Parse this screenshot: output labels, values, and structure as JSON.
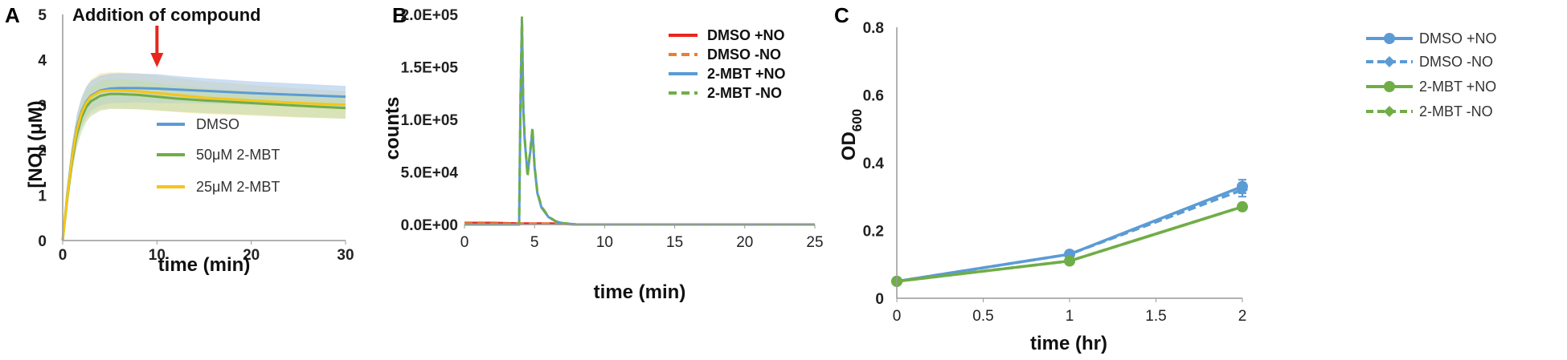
{
  "chart_data": [
    {
      "panel": "A",
      "type": "line",
      "xlabel": "time (min)",
      "ylabel": "[NO] (μM)",
      "xlim": [
        0,
        30
      ],
      "ylim": [
        0,
        5
      ],
      "xticks": [
        0,
        10,
        20,
        30
      ],
      "yticks": [
        0,
        1,
        2,
        3,
        4,
        5
      ],
      "annotation": "Addition of compound",
      "annotation_x": 10,
      "legend_position": "center-right",
      "series": [
        {
          "name": "DMSO",
          "color": "#5b9bd5",
          "band_color": "#a9c8ea",
          "x": [
            0,
            0.5,
            1,
            1.5,
            2,
            2.5,
            3,
            4,
            5,
            6,
            8,
            10,
            12,
            15,
            20,
            25,
            30
          ],
          "y": [
            0,
            1.05,
            1.9,
            2.5,
            2.85,
            3.07,
            3.2,
            3.32,
            3.36,
            3.37,
            3.37,
            3.36,
            3.34,
            3.31,
            3.26,
            3.22,
            3.18
          ],
          "sd": [
            0,
            0.15,
            0.25,
            0.3,
            0.32,
            0.33,
            0.33,
            0.33,
            0.33,
            0.33,
            0.32,
            0.32,
            0.3,
            0.28,
            0.26,
            0.25,
            0.24
          ]
        },
        {
          "name": "50μM 2-MBT",
          "color": "#70ad47",
          "band_color": "#c3dcae",
          "x": [
            0,
            0.5,
            1,
            1.5,
            2,
            2.5,
            3,
            4,
            5,
            6,
            8,
            10,
            12,
            15,
            20,
            25,
            30
          ],
          "y": [
            0,
            0.95,
            1.75,
            2.35,
            2.72,
            2.95,
            3.08,
            3.2,
            3.24,
            3.24,
            3.22,
            3.18,
            3.14,
            3.1,
            3.04,
            2.98,
            2.93
          ],
          "sd": [
            0,
            0.15,
            0.25,
            0.3,
            0.32,
            0.33,
            0.33,
            0.33,
            0.33,
            0.33,
            0.32,
            0.3,
            0.29,
            0.28,
            0.26,
            0.25,
            0.24
          ]
        },
        {
          "name": "25μM 2-MBT",
          "color": "#f5c518",
          "band_color": "#fbe3a0",
          "x": [
            0,
            0.5,
            1,
            1.5,
            2,
            2.5,
            3,
            4,
            5,
            6,
            8,
            10,
            12,
            15,
            20,
            25,
            30
          ],
          "y": [
            0,
            1.0,
            1.85,
            2.45,
            2.82,
            3.04,
            3.18,
            3.3,
            3.32,
            3.32,
            3.3,
            3.26,
            3.22,
            3.16,
            3.1,
            3.04,
            3.0
          ],
          "sd": [
            0,
            0.15,
            0.25,
            0.3,
            0.33,
            0.36,
            0.38,
            0.4,
            0.4,
            0.4,
            0.4,
            0.39,
            0.38,
            0.36,
            0.34,
            0.32,
            0.3
          ]
        }
      ]
    },
    {
      "panel": "B",
      "type": "line",
      "xlabel": "time (min)",
      "ylabel": "counts",
      "xlim": [
        0,
        25
      ],
      "ylim": [
        0,
        200000
      ],
      "xticks": [
        0,
        5,
        10,
        15,
        20,
        25
      ],
      "yticks": [
        0,
        50000,
        100000,
        150000,
        200000
      ],
      "ytick_labels": [
        "0.0E+00",
        "5.0E+04",
        "1.0E+05",
        "1.5E+05",
        "2.0E+05"
      ],
      "legend_position": "top-right",
      "series": [
        {
          "name": "DMSO +NO",
          "color": "#e8261c",
          "dash": "solid",
          "x": [
            0,
            1,
            2,
            3,
            4,
            5,
            6,
            7,
            8,
            25
          ],
          "y": [
            1500,
            1500,
            1500,
            1200,
            1000,
            1000,
            1000,
            800,
            0,
            0
          ]
        },
        {
          "name": "DMSO -NO",
          "color": "#ed7d31",
          "dash": "dashed",
          "x": [
            0,
            1,
            2,
            3,
            4,
            5,
            6,
            7,
            8,
            25
          ],
          "y": [
            1000,
            1000,
            1000,
            800,
            800,
            800,
            800,
            500,
            0,
            0
          ]
        },
        {
          "name": "2-MBT +NO",
          "color": "#5b9bd5",
          "dash": "solid",
          "x": [
            0,
            3.9,
            4.0,
            4.1,
            4.2,
            4.3,
            4.5,
            4.7,
            4.85,
            5.0,
            5.2,
            5.5,
            6.0,
            6.5,
            7.0,
            8,
            25
          ],
          "y": [
            0,
            0,
            120000,
            195000,
            110000,
            80000,
            48000,
            70000,
            90000,
            55000,
            30000,
            16000,
            7000,
            3000,
            1200,
            0,
            0
          ]
        },
        {
          "name": "2-MBT -NO",
          "color": "#70ad47",
          "dash": "dashed",
          "x": [
            0,
            3.9,
            4.0,
            4.1,
            4.2,
            4.3,
            4.5,
            4.7,
            4.85,
            5.0,
            5.2,
            5.5,
            6.0,
            6.5,
            7.0,
            8,
            25
          ],
          "y": [
            0,
            0,
            125000,
            198000,
            112000,
            82000,
            46000,
            72000,
            92000,
            56000,
            31000,
            17000,
            7500,
            3200,
            1300,
            0,
            0
          ]
        }
      ]
    },
    {
      "panel": "C",
      "type": "line",
      "xlabel": "time (hr)",
      "ylabel_main": "OD",
      "ylabel_sub": "600",
      "xlim": [
        0,
        2
      ],
      "ylim": [
        0,
        0.8
      ],
      "xticks": [
        0,
        0.5,
        1,
        1.5,
        2
      ],
      "yticks": [
        0,
        0.2,
        0.4,
        0.6,
        0.8
      ],
      "legend_position": "top-right",
      "series": [
        {
          "name": "DMSO +NO",
          "color": "#5b9bd5",
          "dash": "solid",
          "x": [
            0,
            1,
            2
          ],
          "y": [
            0.05,
            0.13,
            0.33
          ],
          "err": [
            0,
            0.01,
            0.02
          ]
        },
        {
          "name": "DMSO -NO",
          "color": "#5b9bd5",
          "dash": "dashed",
          "x": [
            0,
            1,
            2
          ],
          "y": [
            0.05,
            0.13,
            0.32
          ],
          "err": [
            0,
            0.01,
            0.02
          ]
        },
        {
          "name": "2-MBT +NO",
          "color": "#70ad47",
          "dash": "solid",
          "x": [
            0,
            1,
            2
          ],
          "y": [
            0.05,
            0.11,
            0.27
          ],
          "err": [
            0,
            0.005,
            0.01
          ]
        },
        {
          "name": "2-MBT -NO",
          "color": "#70ad47",
          "dash": "dashed",
          "x": [
            0,
            1,
            2
          ],
          "y": [
            0.05,
            0.11,
            0.27
          ],
          "err": [
            0,
            0.005,
            0.01
          ]
        }
      ]
    }
  ]
}
